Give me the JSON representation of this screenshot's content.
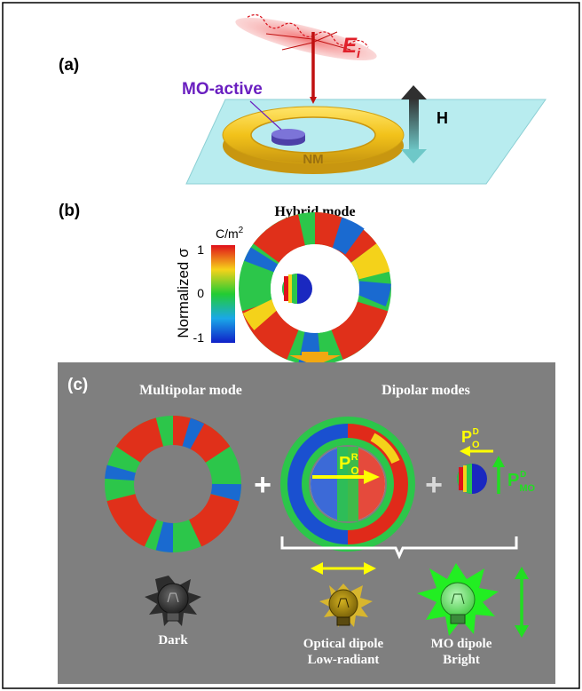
{
  "panel_a": {
    "label": "(a)",
    "field_label": "E",
    "field_subscript": "i",
    "mo_label": "MO-active",
    "ring_label": "NM",
    "magnetic_label": "H"
  },
  "panel_b": {
    "label": "(b)",
    "title": "Hybrid mode",
    "colorbar_unit": "C/m",
    "colorbar_unit_sup": "2",
    "colorbar_axis": "Normalized σ",
    "colorbar_ticks": [
      "1",
      "0",
      "-1"
    ]
  },
  "panel_c": {
    "label": "(c)",
    "multipolar_title": "Multipolar mode",
    "dipolar_title": "Dipolar modes",
    "plus": "+",
    "p_main": "P",
    "p_o_r_sub": "O",
    "p_o_r_sup": "R",
    "p_o_d_sub": "O",
    "p_o_d_sup": "D",
    "p_mo_sub": "MO",
    "p_mo_sup": "D",
    "dark_label": "Dark",
    "optical_line1": "Optical dipole",
    "optical_line2": "Low-radiant",
    "mo_line1": "MO dipole",
    "mo_line2": "Bright"
  },
  "colors": {
    "field_red": "#e0202a",
    "mo_purple": "#6a1fc0",
    "ring_gold": "#f2c21a",
    "plate_cyan": "#b8ecef",
    "panel_gray": "#7f7f7f",
    "arrow_yellow": "#ffff00",
    "mo_green": "#22dd22"
  }
}
